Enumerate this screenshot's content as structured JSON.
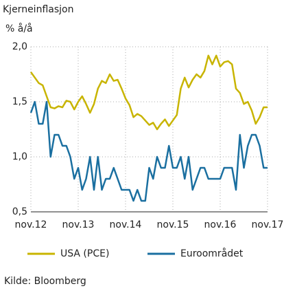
{
  "chart_data": {
    "type": "line",
    "title": "Kjerneinflasjon",
    "subtitle": "% å/å",
    "source": "Kilde: Bloomberg",
    "categories": [
      "nov.12",
      null,
      null,
      null,
      null,
      null,
      null,
      null,
      null,
      null,
      null,
      null,
      "nov.13",
      null,
      null,
      null,
      null,
      null,
      null,
      null,
      null,
      null,
      null,
      null,
      "nov.14",
      null,
      null,
      null,
      null,
      null,
      null,
      null,
      null,
      null,
      null,
      null,
      "nov.15",
      null,
      null,
      null,
      null,
      null,
      null,
      null,
      null,
      null,
      null,
      null,
      "nov.16",
      null,
      null,
      null,
      null,
      null,
      null,
      null,
      null,
      null,
      null,
      null,
      "nov.17"
    ],
    "series": [
      {
        "name": "USA (PCE)",
        "color": "#c8b400",
        "values": [
          1.77,
          1.72,
          1.67,
          1.65,
          1.55,
          1.45,
          1.44,
          1.46,
          1.45,
          1.51,
          1.5,
          1.43,
          1.5,
          1.55,
          1.48,
          1.4,
          1.48,
          1.62,
          1.69,
          1.67,
          1.75,
          1.69,
          1.7,
          1.62,
          1.53,
          1.47,
          1.36,
          1.39,
          1.37,
          1.33,
          1.29,
          1.31,
          1.25,
          1.3,
          1.34,
          1.28,
          1.33,
          1.38,
          1.62,
          1.72,
          1.63,
          1.7,
          1.75,
          1.72,
          1.78,
          1.92,
          1.84,
          1.92,
          1.82,
          1.86,
          1.87,
          1.84,
          1.62,
          1.58,
          1.48,
          1.5,
          1.42,
          1.3,
          1.36,
          1.45,
          1.45
        ]
      },
      {
        "name": "Euroområdet",
        "color": "#1a6fa0",
        "values": [
          1.4,
          1.5,
          1.3,
          1.3,
          1.5,
          1.0,
          1.2,
          1.2,
          1.1,
          1.1,
          1.0,
          0.8,
          0.9,
          0.7,
          0.8,
          1.0,
          0.7,
          1.0,
          0.7,
          0.8,
          0.8,
          0.9,
          0.8,
          0.7,
          0.7,
          0.7,
          0.6,
          0.7,
          0.6,
          0.6,
          0.9,
          0.8,
          1.0,
          0.9,
          0.9,
          1.1,
          0.9,
          0.9,
          1.0,
          0.8,
          1.0,
          0.7,
          0.8,
          0.9,
          0.9,
          0.8,
          0.8,
          0.8,
          0.8,
          0.9,
          0.9,
          0.9,
          0.7,
          1.2,
          0.9,
          1.1,
          1.2,
          1.2,
          1.1,
          0.9,
          0.9
        ]
      }
    ],
    "ylim": [
      0.5,
      2.0
    ],
    "yticks": [
      {
        "value": 0.5,
        "label": "0,5"
      },
      {
        "value": 1.0,
        "label": "1,0"
      },
      {
        "value": 1.5,
        "label": "1,5"
      },
      {
        "value": 2.0,
        "label": "2,0"
      }
    ],
    "grid": true
  }
}
